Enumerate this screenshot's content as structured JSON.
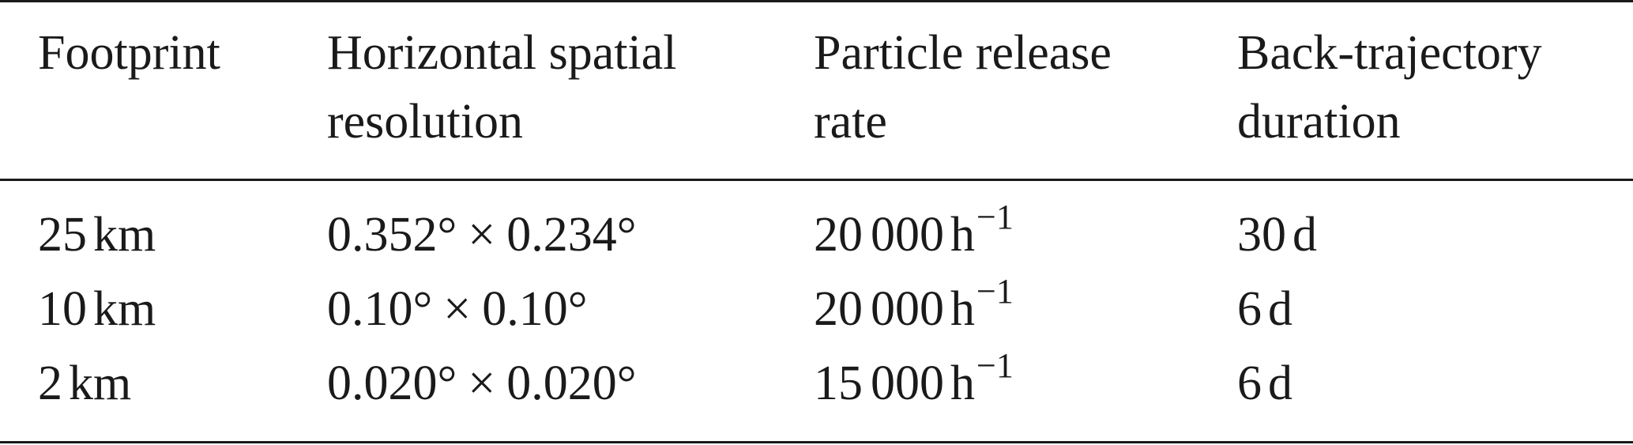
{
  "table": {
    "headers": [
      {
        "line1": "Footprint",
        "line2": ""
      },
      {
        "line1": "Horizontal spatial",
        "line2": "resolution"
      },
      {
        "line1": "Particle release",
        "line2": "rate"
      },
      {
        "line1": "Back-trajectory",
        "line2": "duration"
      }
    ],
    "rows": [
      {
        "footprint_value": "25",
        "footprint_unit": "km",
        "res_a": "0.352°",
        "res_times": "×",
        "res_b": "0.234°",
        "rate_thousands": "20",
        "rate_rest": "000",
        "rate_unit": "h",
        "rate_exp": "−1",
        "duration_value": "30",
        "duration_unit": "d"
      },
      {
        "footprint_value": "10",
        "footprint_unit": "km",
        "res_a": "0.10°",
        "res_times": "×",
        "res_b": "0.10°",
        "rate_thousands": "20",
        "rate_rest": "000",
        "rate_unit": "h",
        "rate_exp": "−1",
        "duration_value": "6",
        "duration_unit": "d"
      },
      {
        "footprint_value": "2",
        "footprint_unit": "km",
        "res_a": "0.020°",
        "res_times": "×",
        "res_b": "0.020°",
        "rate_thousands": "15",
        "rate_rest": "000",
        "rate_unit": "h",
        "rate_exp": "−1",
        "duration_value": "6",
        "duration_unit": "d"
      }
    ]
  }
}
